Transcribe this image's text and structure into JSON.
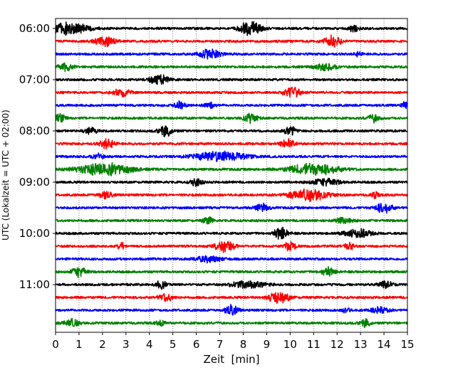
{
  "chart_data": {
    "type": "line",
    "subtype": "seismogram-dayplot",
    "xlabel": "Zeit  [min]",
    "ylabel": "UTC (Lokalzeit = UTC + 02:00)",
    "xlim": [
      0,
      15
    ],
    "xticks": [
      "0",
      "1",
      "2",
      "3",
      "4",
      "5",
      "6",
      "7",
      "8",
      "9",
      "10",
      "11",
      "12",
      "13",
      "14",
      "15"
    ],
    "yticks": [
      "06:00",
      "07:00",
      "08:00",
      "09:00",
      "10:00",
      "11:00"
    ],
    "trace_interval_min": 15,
    "grid": "vertical-dotted",
    "colors": [
      "#000000",
      "#ff0000",
      "#0000ff",
      "#008000"
    ],
    "traces": [
      {
        "start": "06:00",
        "events": [
          [
            0.5,
            1.0,
            1.2
          ],
          [
            8.3,
            1.2,
            0.6
          ],
          [
            12.7,
            0.5,
            0.3
          ]
        ]
      },
      {
        "start": "06:15",
        "events": [
          [
            2.1,
            0.8,
            0.6
          ],
          [
            11.8,
            0.9,
            0.5
          ]
        ]
      },
      {
        "start": "06:30",
        "events": [
          [
            6.6,
            0.8,
            0.6
          ],
          [
            12.9,
            0.4,
            0.2
          ]
        ]
      },
      {
        "start": "06:45",
        "events": [
          [
            0.4,
            0.7,
            0.4
          ],
          [
            11.5,
            0.6,
            0.6
          ]
        ]
      },
      {
        "start": "07:00",
        "events": [
          [
            4.4,
            0.9,
            0.5
          ]
        ]
      },
      {
        "start": "07:15",
        "events": [
          [
            2.8,
            0.6,
            0.5
          ],
          [
            10.1,
            0.9,
            0.5
          ]
        ]
      },
      {
        "start": "07:30",
        "events": [
          [
            5.3,
            0.7,
            0.3
          ],
          [
            6.6,
            0.5,
            0.3
          ],
          [
            14.9,
            0.6,
            0.2
          ]
        ]
      },
      {
        "start": "07:45",
        "events": [
          [
            0.2,
            0.7,
            0.3
          ],
          [
            8.3,
            0.8,
            0.4
          ],
          [
            13.6,
            0.6,
            0.4
          ]
        ]
      },
      {
        "start": "08:00",
        "events": [
          [
            1.5,
            0.5,
            0.4
          ],
          [
            4.7,
            0.9,
            0.4
          ],
          [
            10.0,
            0.8,
            0.3
          ]
        ]
      },
      {
        "start": "08:15",
        "events": [
          [
            2.2,
            0.8,
            0.4
          ],
          [
            9.9,
            0.8,
            0.4
          ]
        ]
      },
      {
        "start": "08:30",
        "events": [
          [
            1.8,
            0.5,
            0.3
          ],
          [
            7.0,
            0.8,
            1.5
          ]
        ]
      },
      {
        "start": "08:45",
        "events": [
          [
            2.1,
            1.0,
            1.6
          ],
          [
            11.0,
            0.9,
            1.5
          ]
        ]
      },
      {
        "start": "09:00",
        "events": [
          [
            6.0,
            0.8,
            0.3
          ],
          [
            11.5,
            0.6,
            0.8
          ]
        ]
      },
      {
        "start": "09:15",
        "events": [
          [
            2.1,
            0.6,
            0.4
          ],
          [
            10.8,
            1.0,
            1.1
          ],
          [
            13.6,
            0.7,
            0.2
          ]
        ]
      },
      {
        "start": "09:30",
        "events": [
          [
            8.8,
            0.6,
            0.4
          ],
          [
            14.0,
            0.8,
            0.5
          ]
        ]
      },
      {
        "start": "09:45",
        "events": [
          [
            6.5,
            0.6,
            0.3
          ],
          [
            12.3,
            0.5,
            0.5
          ]
        ]
      },
      {
        "start": "10:00",
        "events": [
          [
            9.6,
            1.0,
            0.4
          ],
          [
            12.9,
            0.7,
            0.8
          ]
        ]
      },
      {
        "start": "10:15",
        "events": [
          [
            2.8,
            0.6,
            0.2
          ],
          [
            7.2,
            0.9,
            0.6
          ],
          [
            10.0,
            0.9,
            0.3
          ],
          [
            12.5,
            0.6,
            0.3
          ]
        ]
      },
      {
        "start": "10:30",
        "events": [
          [
            6.5,
            0.5,
            0.8
          ]
        ]
      },
      {
        "start": "10:45",
        "events": [
          [
            1.0,
            0.9,
            0.4
          ],
          [
            11.6,
            0.7,
            0.4
          ]
        ]
      },
      {
        "start": "11:00",
        "events": [
          [
            4.5,
            0.7,
            0.3
          ],
          [
            8.2,
            0.6,
            1.0
          ],
          [
            14.1,
            0.6,
            0.4
          ]
        ]
      },
      {
        "start": "11:15",
        "events": [
          [
            4.7,
            0.7,
            0.4
          ],
          [
            9.5,
            1.0,
            0.6
          ]
        ]
      },
      {
        "start": "11:30",
        "events": [
          [
            7.5,
            0.8,
            0.4
          ],
          [
            12.4,
            0.5,
            0.2
          ],
          [
            13.8,
            0.5,
            0.5
          ]
        ]
      },
      {
        "start": "11:45",
        "events": [
          [
            0.7,
            0.8,
            0.4
          ],
          [
            4.5,
            0.4,
            0.3
          ],
          [
            13.2,
            0.6,
            0.3
          ]
        ]
      }
    ]
  }
}
